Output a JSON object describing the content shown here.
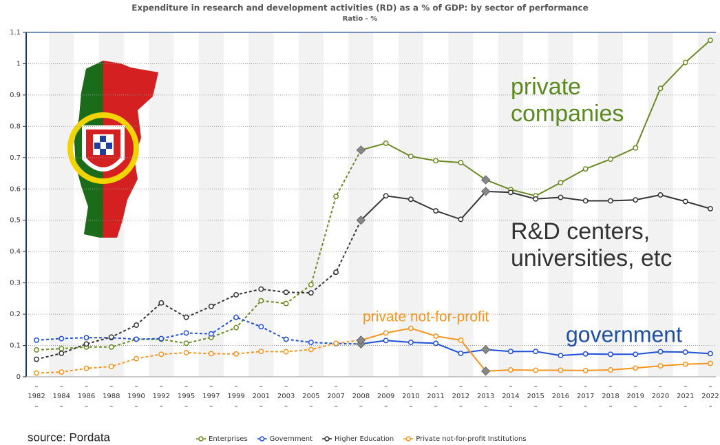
{
  "chart_data": {
    "type": "line",
    "title": "Expenditure in research and development activities (RD) as a % of GDP: by sector of performance",
    "subtitle": "Ratio - %",
    "categories": [
      "1982",
      "1984",
      "1986",
      "1988",
      "1990",
      "1992",
      "1995",
      "1997",
      "1999",
      "2001",
      "2003",
      "2005",
      "2007",
      "2008",
      "2009",
      "2010",
      "2011",
      "2012",
      "2013",
      "2014",
      "2015",
      "2016",
      "2017",
      "2018",
      "2019",
      "2020",
      "2021",
      "2022"
    ],
    "series": [
      {
        "name": "Enterprises",
        "color": "#6b8a23",
        "values": [
          0.086,
          0.09,
          0.095,
          0.095,
          0.12,
          0.12,
          0.107,
          0.126,
          0.157,
          0.243,
          0.234,
          0.294,
          0.576,
          0.724,
          0.746,
          0.704,
          0.69,
          0.684,
          0.629,
          0.598,
          0.578,
          0.62,
          0.664,
          0.695,
          0.731,
          0.921,
          1.004,
          1.075
        ]
      },
      {
        "name": "Government",
        "color": "#1f4fd8",
        "values": [
          0.117,
          0.122,
          0.125,
          0.125,
          0.12,
          0.122,
          0.14,
          0.137,
          0.19,
          0.16,
          0.12,
          0.11,
          0.106,
          0.105,
          0.116,
          0.11,
          0.107,
          0.075,
          0.087,
          0.081,
          0.081,
          0.068,
          0.073,
          0.072,
          0.072,
          0.08,
          0.079,
          0.074
        ]
      },
      {
        "name": "Higher Education",
        "color": "#333333",
        "values": [
          0.056,
          0.075,
          0.105,
          0.127,
          0.165,
          0.236,
          0.19,
          0.225,
          0.262,
          0.28,
          0.27,
          0.268,
          0.334,
          0.5,
          0.578,
          0.567,
          0.53,
          0.503,
          0.592,
          0.589,
          0.568,
          0.573,
          0.562,
          0.562,
          0.565,
          0.581,
          0.56,
          0.537
        ]
      },
      {
        "name": "Private not-for-profit Institutions",
        "color": "#f7941d",
        "values": [
          0.012,
          0.015,
          0.027,
          0.033,
          0.058,
          0.072,
          0.077,
          0.074,
          0.073,
          0.081,
          0.08,
          0.087,
          0.107,
          0.117,
          0.14,
          0.155,
          0.13,
          0.117,
          0.018,
          0.022,
          0.021,
          0.021,
          0.02,
          0.022,
          0.028,
          0.035,
          0.04,
          0.043
        ]
      }
    ],
    "ylim": [
      0,
      1.1
    ],
    "yticks": [
      0,
      0.1,
      0.2,
      0.3,
      0.4,
      0.5,
      0.6,
      0.7,
      0.8,
      0.9,
      1,
      1.1
    ],
    "grid": true,
    "dashed_until": "2008",
    "break_markers": [
      "2008",
      "2013"
    ],
    "legend": "bottom",
    "annotations": [
      {
        "lines": [
          "private",
          "companies"
        ],
        "color": "#5a8a1e"
      },
      {
        "lines": [
          "R&D centers,",
          "universities, etc"
        ],
        "color": "#333333"
      },
      {
        "lines": [
          "private not-for-profit"
        ],
        "color": "#f7941d"
      },
      {
        "lines": [
          "government"
        ],
        "color": "#1f4fa0"
      }
    ],
    "source": "source: Pordata"
  }
}
